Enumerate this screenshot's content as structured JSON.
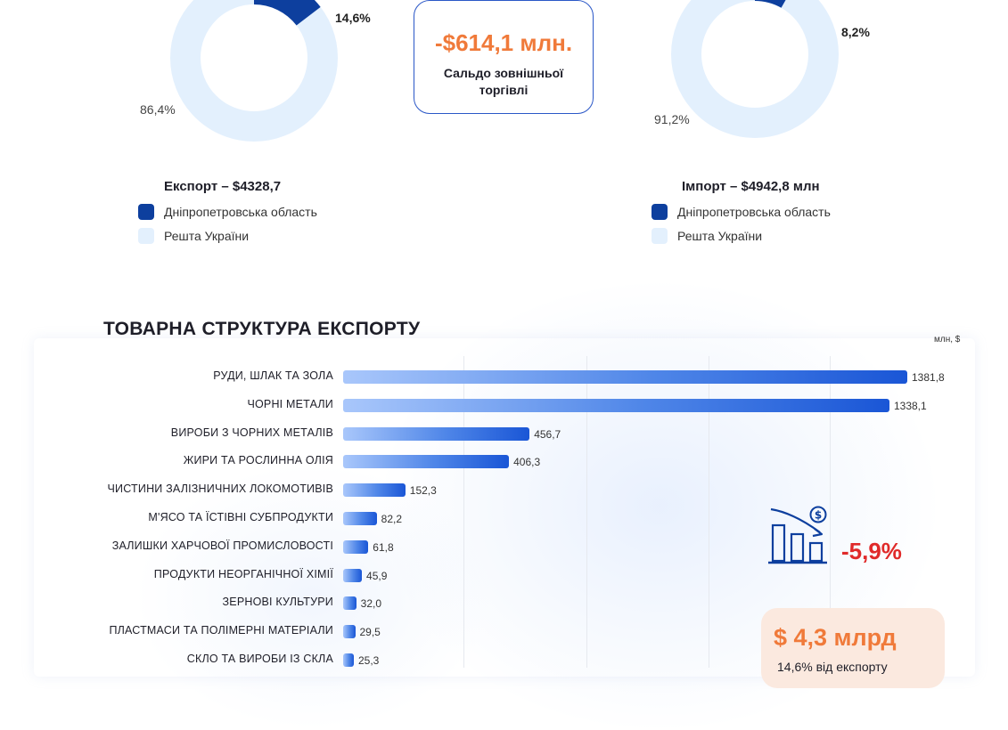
{
  "balance": {
    "value": "-$614,1 млн.",
    "caption": "Сальдо зовнішньої торгівлі"
  },
  "export_donut": {
    "title": "Експорт – $4328,7",
    "region_pct_label": "14,6%",
    "rest_pct_label": "86,4%",
    "legend": [
      "Дніпропетровська область",
      "Решта України"
    ]
  },
  "import_donut": {
    "title": "Імпорт – $4942,8 млн",
    "region_pct_label": "8,2%",
    "rest_pct_label": "91,2%",
    "legend": [
      "Дніпропетровська область",
      "Решта України"
    ]
  },
  "colors": {
    "region": "#0d3f9e",
    "rest": "#e3f0fd",
    "accent_orange": "#f07a3a",
    "negative_red": "#e02a2a",
    "card_border": "#2a57c7"
  },
  "export_structure": {
    "title": "ТОВАРНА СТРУКТУРА ЕКСПОРТУ",
    "unit": "млн, $"
  },
  "chart_data": [
    {
      "type": "pie",
      "title": "Експорт – $4328,7",
      "categories": [
        "Дніпропетровська область",
        "Решта України"
      ],
      "values": [
        14.6,
        86.4
      ]
    },
    {
      "type": "pie",
      "title": "Імпорт – $4942,8 млн",
      "categories": [
        "Дніпропетровська область",
        "Решта України"
      ],
      "values": [
        8.2,
        91.2
      ]
    },
    {
      "type": "bar",
      "orientation": "horizontal",
      "title": "ТОВАРНА СТРУКТУРА ЕКСПОРТУ",
      "unit": "млн, $",
      "categories": [
        "РУДИ, ШЛАК ТА ЗОЛА",
        "ЧОРНІ МЕТАЛИ",
        "ВИРОБИ З ЧОРНИХ МЕТАЛІВ",
        "ЖИРИ ТА РОСЛИННА ОЛІЯ",
        "ЧИСТИНИ ЗАЛІЗНИЧНИХ ЛОКОМОТИВІВ",
        "М'ЯСО ТА ЇСТІВНІ СУБПРОДУКТИ",
        "ЗАЛИШКИ ХАРЧОВОЇ ПРОМИСЛОВОСТІ",
        "ПРОДУКТИ НЕОРГАНІЧНОЇ ХІМІЇ",
        "ЗЕРНОВІ КУЛЬТУРИ",
        "ПЛАСТМАСИ ТА ПОЛІМЕРНІ МАТЕРІАЛИ",
        "СКЛО ТА ВИРОБИ ІЗ СКЛА"
      ],
      "values": [
        1381.8,
        1338.1,
        456.7,
        406.3,
        152.3,
        82.2,
        61.8,
        45.9,
        32.0,
        29.5,
        25.3
      ],
      "value_labels": [
        "1381,8",
        "1338,1",
        "456,7",
        "406,3",
        "152,3",
        "82,2",
        "61,8",
        "45,9",
        "32,0",
        "29,5",
        "25,3"
      ],
      "xlim": [
        0,
        1400
      ],
      "grid": true
    }
  ],
  "trend": {
    "icon": "declining-chart-dollar-icon",
    "value": "-5,9%"
  },
  "total_card": {
    "value": "$ 4,3 млрд",
    "caption": "14,6% від експорту"
  }
}
